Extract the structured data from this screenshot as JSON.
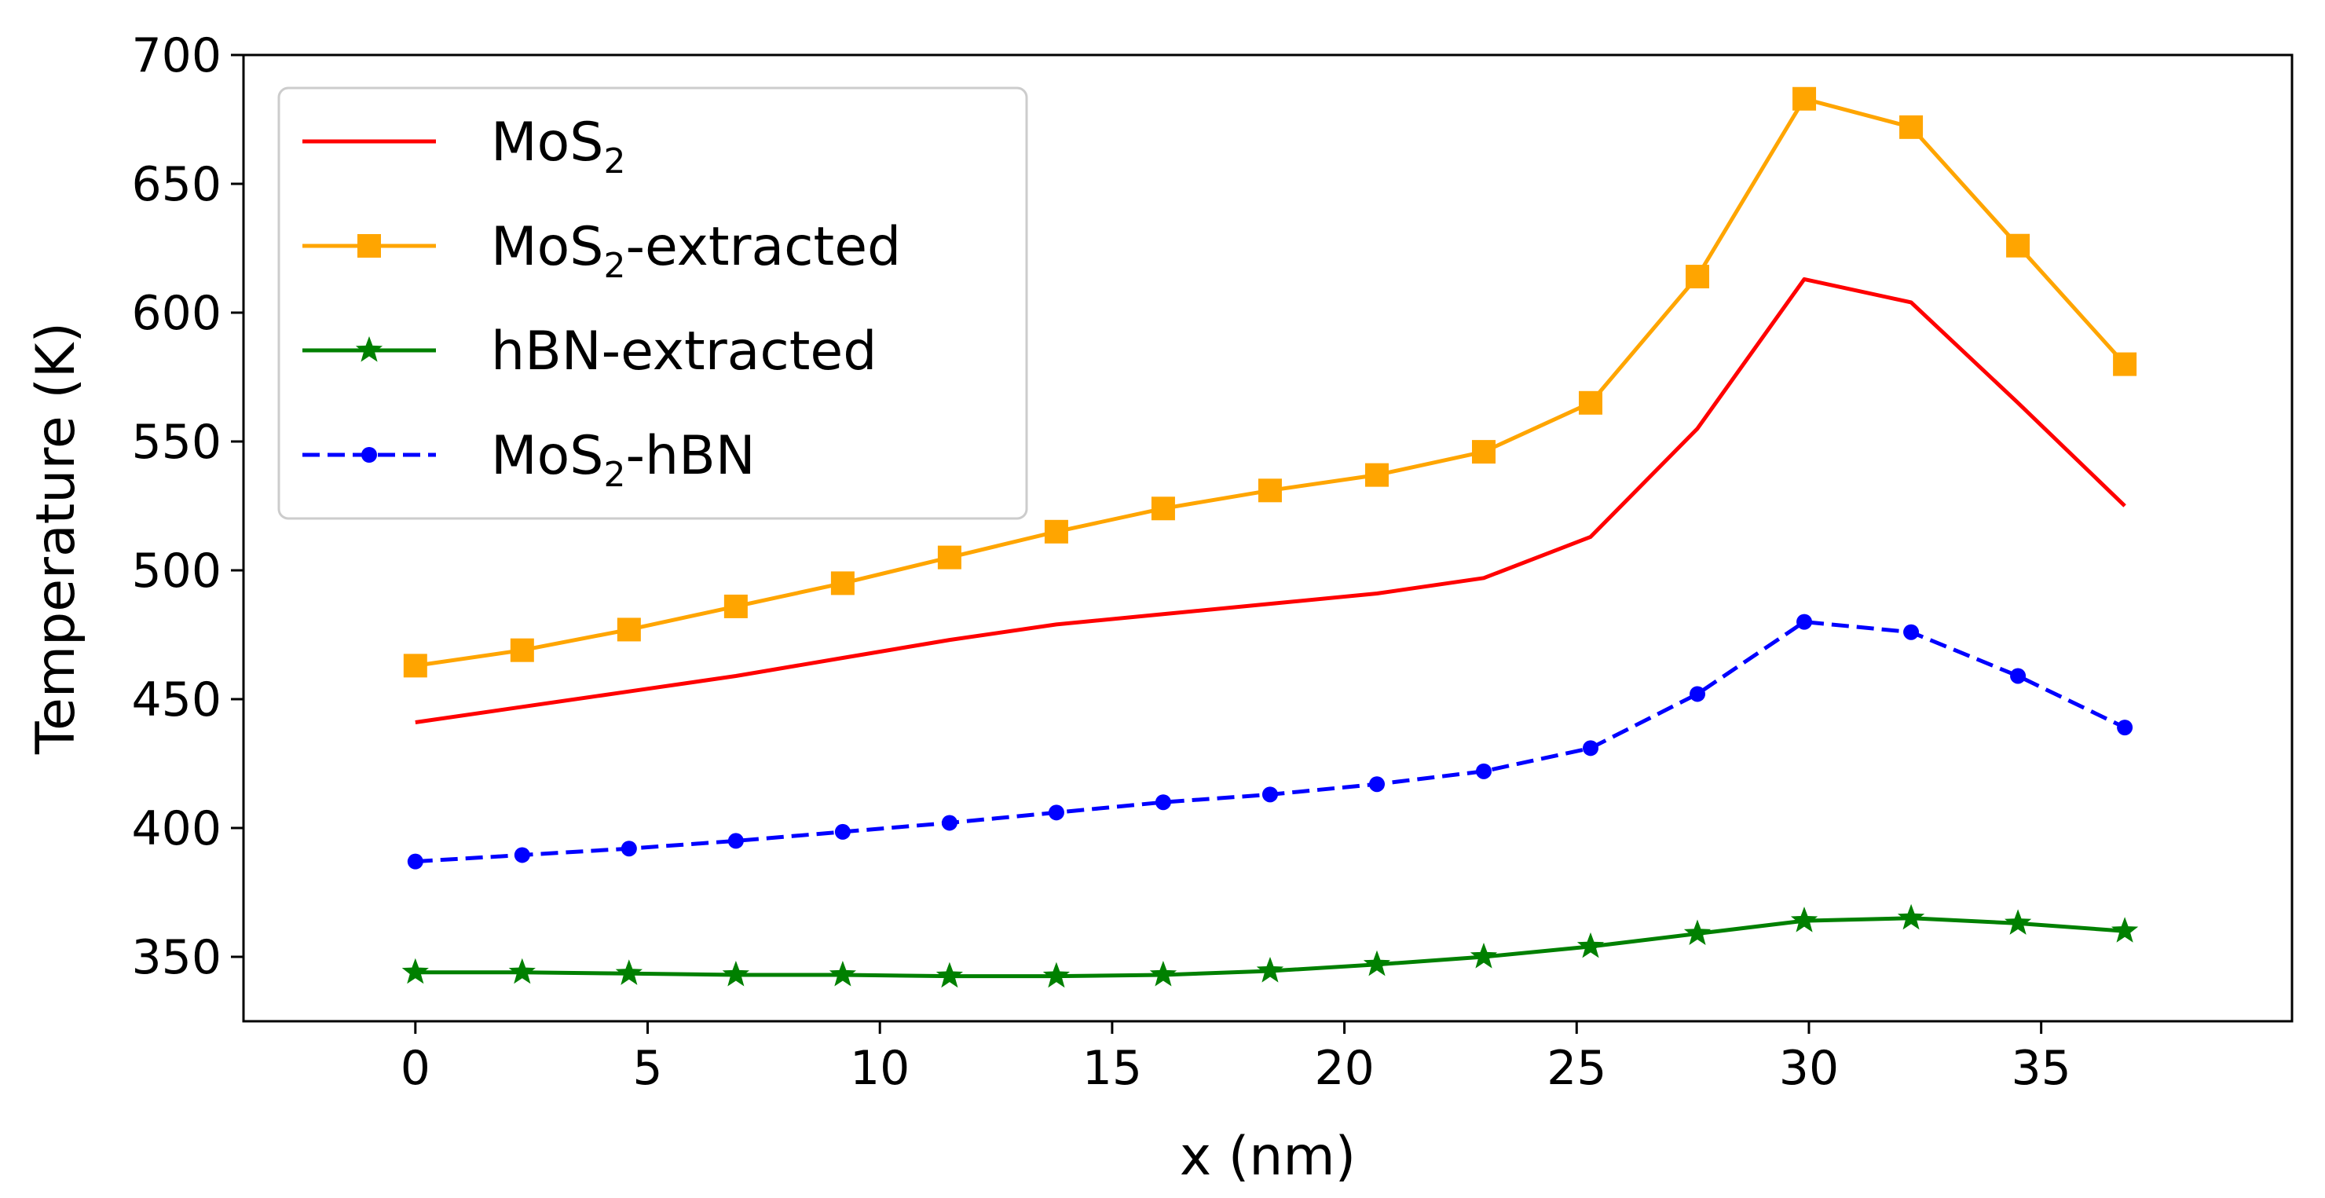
{
  "chart_data": {
    "type": "line",
    "title": "",
    "xlabel": "x (nm)",
    "ylabel": "Temperature (K)",
    "xlim": [
      -3.7,
      40.4
    ],
    "ylim": [
      325,
      700
    ],
    "xticks": [
      0,
      5,
      10,
      15,
      20,
      25,
      30,
      35
    ],
    "yticks": [
      350,
      400,
      450,
      500,
      550,
      600,
      650,
      700
    ],
    "grid": false,
    "legend_position": "top-left",
    "x": [
      0,
      2.3,
      4.6,
      6.9,
      9.2,
      11.5,
      13.8,
      16.1,
      18.4,
      20.7,
      23.0,
      25.3,
      27.6,
      29.9,
      32.2,
      34.5,
      36.8
    ],
    "series": [
      {
        "name": "MoS2",
        "legend": {
          "base": "MoS",
          "sub": "2",
          "rest": ""
        },
        "color": "#ff0000",
        "dash": "solid",
        "marker": "none",
        "values": [
          441,
          447,
          453,
          459,
          466,
          473,
          479,
          483,
          487,
          491,
          497,
          513,
          555,
          613,
          604,
          565,
          525
        ]
      },
      {
        "name": "MoS2-extracted",
        "legend": {
          "base": "MoS",
          "sub": "2",
          "rest": "-extracted"
        },
        "color": "#ffa500",
        "dash": "solid",
        "marker": "square",
        "values": [
          463,
          469,
          477,
          486,
          495,
          505,
          515,
          524,
          531,
          537,
          546,
          565,
          614,
          683,
          672,
          626,
          580
        ]
      },
      {
        "name": "hBN-extracted",
        "legend": {
          "base": "hBN-extracted",
          "sub": "",
          "rest": ""
        },
        "color": "#008000",
        "dash": "solid",
        "marker": "star",
        "values": [
          344,
          344,
          343.5,
          343,
          343,
          342.5,
          342.5,
          343,
          344.5,
          347,
          350,
          354,
          359,
          364,
          365,
          363,
          360
        ]
      },
      {
        "name": "MoS2-hBN",
        "legend": {
          "base": "MoS",
          "sub": "2",
          "rest": "-hBN"
        },
        "color": "#0000ff",
        "dash": "dashed",
        "marker": "circle",
        "values": [
          387,
          389.5,
          392,
          395,
          398.5,
          402,
          406,
          410,
          413,
          417,
          422,
          431,
          452,
          480,
          476,
          459,
          439
        ]
      }
    ]
  }
}
